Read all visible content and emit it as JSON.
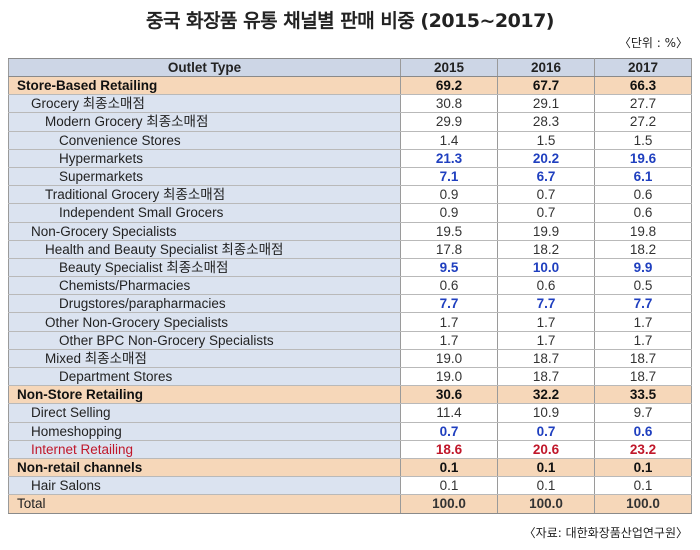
{
  "title": "중국 화장품 유통 채널별 판매 비중 (2015~2017)",
  "unit": "〈단위 : %〉",
  "source": "〈자료: 대한화장품산업연구원〉",
  "table": {
    "headers": [
      "Outlet Type",
      "2015",
      "2016",
      "2017"
    ],
    "rows": [
      {
        "label": "Store-Based Retailing",
        "v2015": "69.2",
        "v2016": "67.7",
        "v2017": "66.3"
      },
      {
        "label": "Grocery 최종소매점",
        "v2015": "30.8",
        "v2016": "29.1",
        "v2017": "27.7"
      },
      {
        "label": "Modern Grocery 최종소매점",
        "v2015": "29.9",
        "v2016": "28.3",
        "v2017": "27.2"
      },
      {
        "label": "Convenience Stores",
        "v2015": "1.4",
        "v2016": "1.5",
        "v2017": "1.5"
      },
      {
        "label": "Hypermarkets",
        "v2015": "21.3",
        "v2016": "20.2",
        "v2017": "19.6"
      },
      {
        "label": "Supermarkets",
        "v2015": "7.1",
        "v2016": "6.7",
        "v2017": "6.1"
      },
      {
        "label": "Traditional Grocery 최종소매점",
        "v2015": "0.9",
        "v2016": "0.7",
        "v2017": "0.6"
      },
      {
        "label": "Independent Small Grocers",
        "v2015": "0.9",
        "v2016": "0.7",
        "v2017": "0.6"
      },
      {
        "label": "Non-Grocery Specialists",
        "v2015": "19.5",
        "v2016": "19.9",
        "v2017": "19.8"
      },
      {
        "label": "Health and Beauty Specialist 최종소매점",
        "v2015": "17.8",
        "v2016": "18.2",
        "v2017": "18.2"
      },
      {
        "label": "Beauty Specialist 최종소매점",
        "v2015": "9.5",
        "v2016": "10.0",
        "v2017": "9.9"
      },
      {
        "label": "Chemists/Pharmacies",
        "v2015": "0.6",
        "v2016": "0.6",
        "v2017": "0.5"
      },
      {
        "label": "Drugstores/parapharmacies",
        "v2015": "7.7",
        "v2016": "7.7",
        "v2017": "7.7"
      },
      {
        "label": "Other Non-Grocery Specialists",
        "v2015": "1.7",
        "v2016": "1.7",
        "v2017": "1.7"
      },
      {
        "label": "Other BPC Non-Grocery Specialists",
        "v2015": "1.7",
        "v2016": "1.7",
        "v2017": "1.7"
      },
      {
        "label": "Mixed 최종소매점",
        "v2015": "19.0",
        "v2016": "18.7",
        "v2017": "18.7"
      },
      {
        "label": "Department Stores",
        "v2015": "19.0",
        "v2016": "18.7",
        "v2017": "18.7"
      },
      {
        "label": "Non-Store Retailing",
        "v2015": "30.6",
        "v2016": "32.2",
        "v2017": "33.5"
      },
      {
        "label": "Direct Selling",
        "v2015": "11.4",
        "v2016": "10.9",
        "v2017": "9.7"
      },
      {
        "label": "Homeshopping",
        "v2015": "0.7",
        "v2016": "0.7",
        "v2017": "0.6"
      },
      {
        "label": "Internet Retailing",
        "v2015": "18.6",
        "v2016": "20.6",
        "v2017": "23.2"
      },
      {
        "label": "Non-retail channels",
        "v2015": "0.1",
        "v2016": "0.1",
        "v2017": "0.1"
      },
      {
        "label": "Hair Salons",
        "v2015": "0.1",
        "v2016": "0.1",
        "v2017": "0.1"
      },
      {
        "label": "Total",
        "v2015": "100.0",
        "v2016": "100.0",
        "v2017": "100.0"
      }
    ]
  },
  "colors": {
    "header_bg": "#cdd6e6",
    "label_bg": "#dbe3f0",
    "major_row_bg": "#f6d7b9",
    "highlight_blue": "#1f3fbf",
    "highlight_red": "#c0172a"
  }
}
